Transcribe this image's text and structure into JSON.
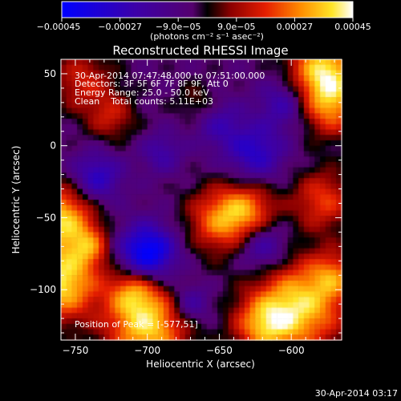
{
  "chart_data": {
    "type": "heatmap",
    "title": "Reconstructed RHESSI Image",
    "xlabel": "Heliocentric X (arcsec)",
    "ylabel": "Heliocentric Y (arcsec)",
    "xlim": [
      -760,
      -565
    ],
    "ylim": [
      -135,
      60
    ],
    "x_ticks": [
      -750,
      -700,
      -650,
      -600
    ],
    "y_ticks": [
      50,
      0,
      -50,
      -100
    ],
    "x_tick_labels": [
      "−750",
      "−700",
      "−650",
      "−600"
    ],
    "y_tick_labels": [
      "50",
      "0",
      "−50",
      "−100"
    ],
    "colorbar": {
      "range": [
        -0.00045,
        0.00045
      ],
      "ticks": [
        -0.00045,
        -0.00027,
        -9e-05,
        9e-05,
        0.00027,
        0.00045
      ],
      "tick_labels": [
        "−0.00045",
        "−0.00027",
        "−9.0e−05",
        "9.0e−05",
        "0.00027",
        "0.00045"
      ],
      "unit_label": "(photons cm⁻² s⁻¹ asec⁻²)"
    },
    "annotations": [
      "30-Apr-2014 07:47:48.000 to 07:51:00.000",
      "Detectors: 3F 5F 6F 7F 8F 9F, Att 0",
      "Energy Range: 25.0 - 50.0 keV",
      "Clean    Total counts: 5.11E+03"
    ],
    "peak_label": "Position of Peak = [-577,51]",
    "peak": [
      -577,
      51
    ],
    "grid": false
  },
  "footer": {
    "timestamp": "30-Apr-2014 03:17"
  }
}
